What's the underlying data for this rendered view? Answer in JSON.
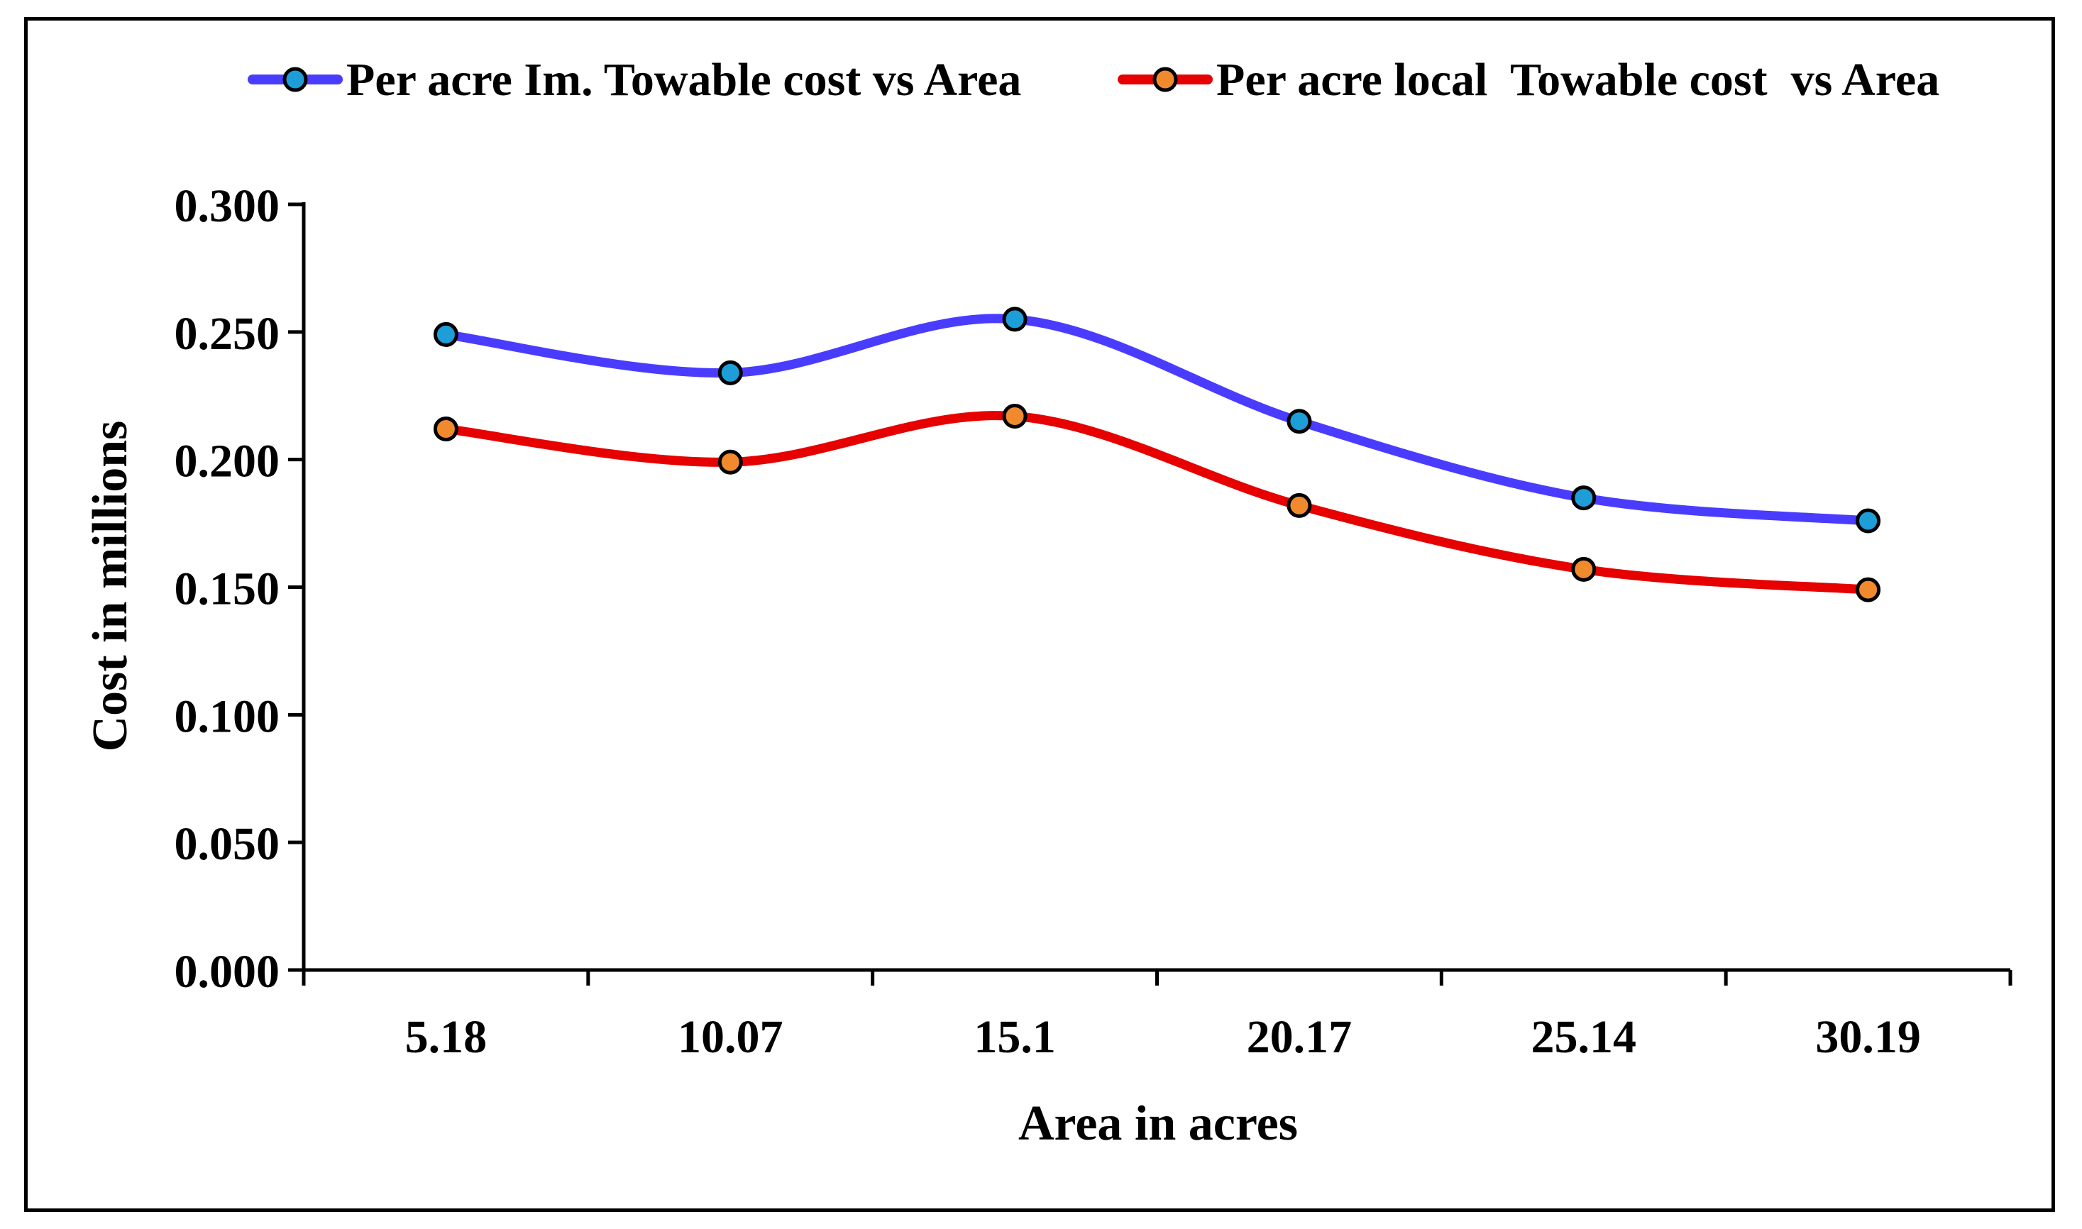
{
  "chart_data": {
    "type": "line",
    "title": "",
    "xlabel": "Area in acres",
    "ylabel": "Cost in millions",
    "categories": [
      "5.18",
      "10.07",
      "15.1",
      "20.17",
      "25.14",
      "30.19"
    ],
    "ylim": [
      0,
      0.3
    ],
    "yticks": [
      0.0,
      0.05,
      0.1,
      0.15,
      0.2,
      0.25,
      0.3
    ],
    "ytick_labels": [
      "0.000",
      "0.050",
      "0.100",
      "0.150",
      "0.200",
      "0.250",
      "0.300"
    ],
    "grid": false,
    "legend_position": "top",
    "smooth": true,
    "series": [
      {
        "name": "Per acre Im. Towable cost vs Area",
        "values": [
          0.249,
          0.234,
          0.255,
          0.215,
          0.185,
          0.176
        ],
        "line_color": "#4a3cff",
        "marker_color": "#1e9ed8"
      },
      {
        "name": "Per acre local  Towable cost  vs Area",
        "values": [
          0.212,
          0.199,
          0.217,
          0.182,
          0.157,
          0.149
        ],
        "line_color": "#e60000",
        "marker_color": "#f08a2c"
      }
    ]
  }
}
